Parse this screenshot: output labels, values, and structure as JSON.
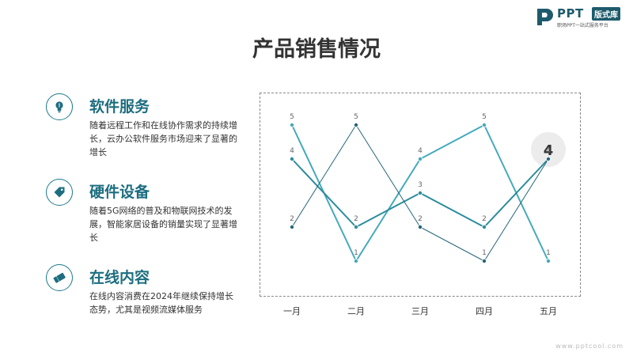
{
  "logo": {
    "name": "PPT",
    "tag": "版式库",
    "subtitle": "职场PPT一站式服务平台"
  },
  "title": "产品销售情况",
  "items": [
    {
      "icon": "lightbulb-icon",
      "heading": "软件服务",
      "desc": "随着远程工作和在线协作需求的持续增长，云办公软件服务市场迎来了显著的增长"
    },
    {
      "icon": "tag-icon",
      "heading": "硬件设备",
      "desc": "随着5G网络的普及和物联网技术的发展，智能家居设备的销量实现了显著增长"
    },
    {
      "icon": "ticket-icon",
      "heading": "在线内容",
      "desc": "在线内容消费在2024年继续保持增长态势，尤其是视频流媒体服务"
    }
  ],
  "chart_data": {
    "type": "line",
    "categories": [
      "一月",
      "二月",
      "三月",
      "四月",
      "五月"
    ],
    "ylim": [
      0,
      6
    ],
    "grid": false,
    "series": [
      {
        "values": [
          5,
          1,
          4,
          5,
          1
        ],
        "color": "#45a9bd"
      },
      {
        "values": [
          4,
          2,
          3,
          2,
          4
        ],
        "color": "#2d8c9c"
      },
      {
        "values": [
          2,
          5,
          2,
          1,
          4
        ],
        "color": "#25667a"
      }
    ],
    "highlight": {
      "value": "4"
    }
  },
  "footer": "www.pptcool.com",
  "colors": {
    "accent": "#1d6e80",
    "brand": "#1d5b6c"
  }
}
